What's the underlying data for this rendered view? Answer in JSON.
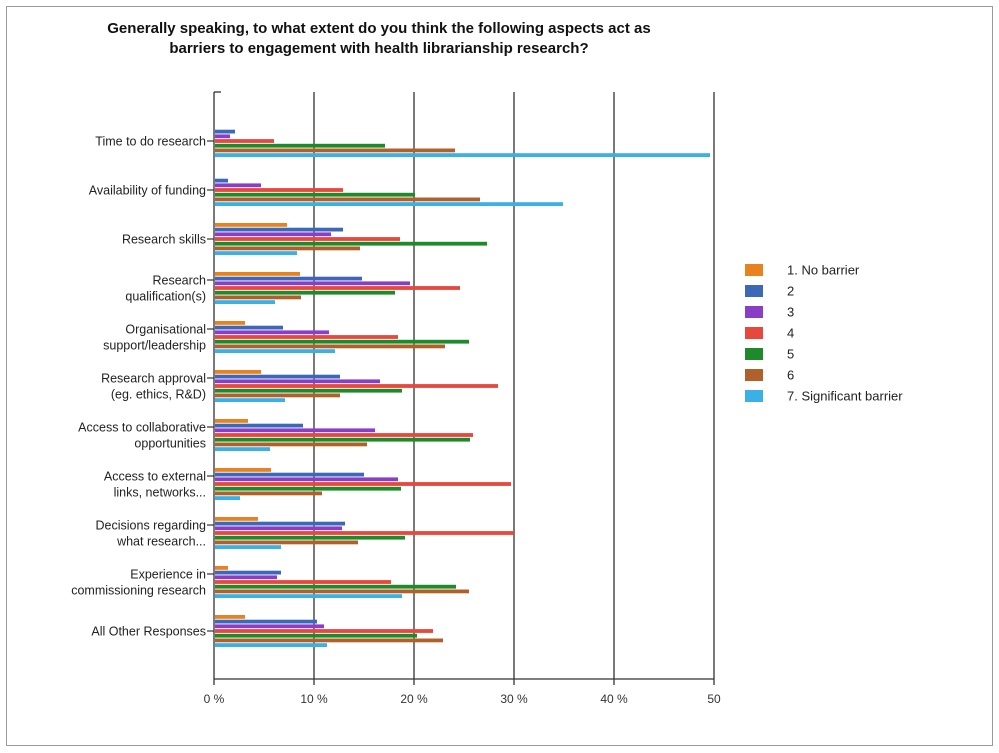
{
  "chart_data": {
    "type": "bar",
    "orientation": "horizontal",
    "title": [
      "Generally speaking, to what extent do you think the following aspects act as",
      "barriers to engagement with health librarianship research?"
    ],
    "xlim": [
      0,
      50
    ],
    "x_ticks": [
      0,
      10,
      20,
      30,
      40,
      50
    ],
    "x_tick_labels": [
      "0 %",
      "10 %",
      "20 %",
      "30 %",
      "40 %",
      "50"
    ],
    "grid": true,
    "legend_position": "right",
    "categories": [
      [
        "Time to do research"
      ],
      [
        "Availability of funding"
      ],
      [
        "Research skills"
      ],
      [
        "Research",
        "qualification(s)"
      ],
      [
        "Organisational",
        "support/leadership"
      ],
      [
        "Research approval",
        "(eg. ethics, R&D)"
      ],
      [
        "Access to collaborative",
        "opportunities"
      ],
      [
        "Access to external",
        "links, networks..."
      ],
      [
        "Decisions regarding",
        "what research..."
      ],
      [
        "Experience in",
        "commissioning research"
      ],
      [
        "All Other Responses"
      ]
    ],
    "series": [
      {
        "name": "1. No barrier",
        "color": "#e8821e",
        "values": [
          0,
          0,
          7.2,
          8.5,
          3,
          4.6,
          3.3,
          5.6,
          4.3,
          1.3,
          3
        ]
      },
      {
        "name": "2",
        "color": "#3d68b8",
        "values": [
          2,
          1.3,
          12.8,
          14.7,
          6.8,
          12.5,
          8.8,
          14.9,
          13,
          6.6,
          10.2
        ]
      },
      {
        "name": "3",
        "color": "#8a3ec6",
        "values": [
          1.5,
          4.6,
          11.6,
          19.5,
          11.4,
          16.5,
          16,
          18.3,
          12.7,
          6.2,
          10.9
        ]
      },
      {
        "name": "4",
        "color": "#e8473d",
        "values": [
          5.9,
          12.8,
          18.5,
          24.5,
          18.3,
          28.3,
          25.8,
          29.6,
          29.9,
          17.6,
          21.8
        ]
      },
      {
        "name": "5",
        "color": "#1f8a2a",
        "values": [
          17,
          20,
          27.2,
          18,
          25.4,
          18.7,
          25.5,
          18.6,
          19,
          24.1,
          20.2
        ]
      },
      {
        "name": "6",
        "color": "#b0602a",
        "values": [
          24,
          26.5,
          14.5,
          8.6,
          23,
          12.5,
          15.2,
          10.7,
          14.3,
          25.4,
          22.8
        ]
      },
      {
        "name": "7. Significant barrier",
        "color": "#3ab0e6",
        "values": [
          49.5,
          34.8,
          8.2,
          6,
          12,
          7,
          5.5,
          2.5,
          6.6,
          18.7,
          11.2
        ]
      }
    ]
  }
}
